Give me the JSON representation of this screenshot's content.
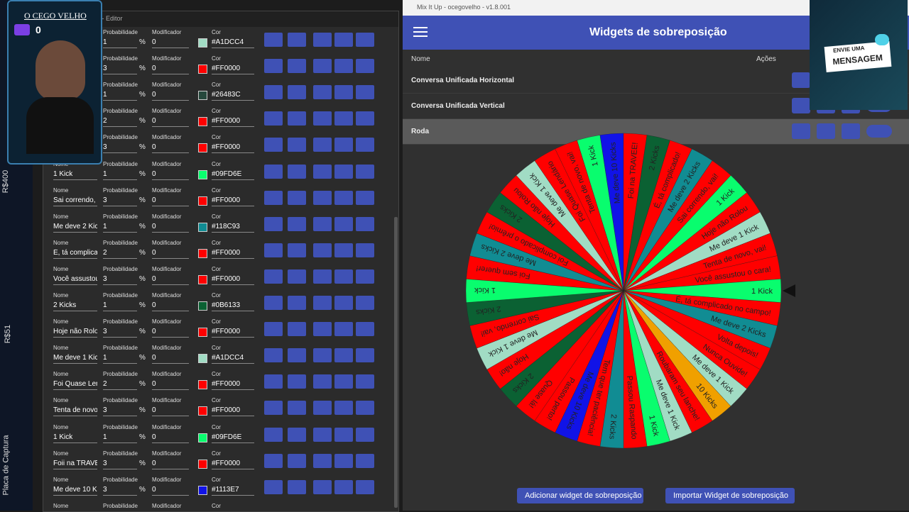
{
  "side_bar": {
    "labels": [
      "R$400",
      "R$51",
      "Placa de Captura"
    ]
  },
  "webcam": {
    "title": "O CEGO VELHO",
    "count": "0"
  },
  "message_box": {
    "line1": "ENVIE UMA",
    "line2": "MENSAGEM"
  },
  "editor": {
    "window_title": "o - Editor",
    "field_labels": {
      "name": "Nome",
      "probability": "Probabilidade",
      "modifier": "Modificador",
      "color": "Cor"
    },
    "percent": "%",
    "rows": [
      {
        "probability": 1,
        "modifier": 0,
        "color": "#A1DCC4"
      },
      {
        "probability": 3,
        "modifier": 0,
        "color": "#FF0000"
      },
      {
        "probability": 1,
        "modifier": 0,
        "color": "#26483C"
      },
      {
        "probability": 2,
        "modifier": 0,
        "color": "#FF0000"
      },
      {
        "probability": 3,
        "modifier": 0,
        "color": "#FF0000"
      },
      {
        "name": "1 Kick",
        "probability": 1,
        "modifier": 0,
        "color": "#09FD6E"
      },
      {
        "name": "Sai correndo,",
        "probability": 3,
        "modifier": 0,
        "color": "#FF0000"
      },
      {
        "name": "Me deve 2 Kic",
        "probability": 1,
        "modifier": 0,
        "color": "#118C93"
      },
      {
        "name": "É, tá complica",
        "probability": 2,
        "modifier": 0,
        "color": "#FF0000"
      },
      {
        "name": "Você assustou",
        "probability": 3,
        "modifier": 0,
        "color": "#FF0000"
      },
      {
        "name": "2 Kicks",
        "probability": 1,
        "modifier": 0,
        "color": "#0B6133"
      },
      {
        "name": "Hoje não Rolo",
        "probability": 3,
        "modifier": 0,
        "color": "#FF0000"
      },
      {
        "name": "Me deve 1 Kic",
        "probability": 1,
        "modifier": 0,
        "color": "#A1DCC4"
      },
      {
        "name": "Foi Quase Ler",
        "probability": 2,
        "modifier": 0,
        "color": "#FF0000"
      },
      {
        "name": "Tenta de novo",
        "probability": 3,
        "modifier": 0,
        "color": "#FF0000"
      },
      {
        "name": "1 Kick",
        "probability": 1,
        "modifier": 0,
        "color": "#09FD6E"
      },
      {
        "name": "Foii na TRAVE",
        "probability": 3,
        "modifier": 0,
        "color": "#FF0000"
      },
      {
        "name": "Me deve 10 K",
        "probability": 3,
        "modifier": 0,
        "color": "#1113E7"
      }
    ]
  },
  "mixitup": {
    "window_title": "Mix It Up - ocegovelho - v1.8.001",
    "header": "Widgets de sobreposição",
    "columns": [
      "Nome",
      "Ações"
    ],
    "widgets": [
      "Conversa Unificada Horizontal",
      "Conversa Unificada Vertical",
      "Roda"
    ],
    "buttons": [
      "Adicionar widget de sobreposição",
      "Importar Widget de sobreposição"
    ],
    "wheel": [
      {
        "label": "1 Kick",
        "color": "#09FD6E"
      },
      {
        "label": "Hoje não Rolou",
        "color": "#FF0000"
      },
      {
        "label": "Me deve 1 Kick",
        "color": "#A1DCC4"
      },
      {
        "label": "Tenta de novo, vai!",
        "color": "#FF0000"
      },
      {
        "label": "Você assustou o cara!",
        "color": "#FF0000"
      },
      {
        "label": "1 Kick",
        "color": "#09FD6E"
      },
      {
        "label": "É, tá complicado no campo!",
        "color": "#FF0000"
      },
      {
        "label": "Me deve 2 Kicks",
        "color": "#118C93"
      },
      {
        "label": "Volta depois!",
        "color": "#FF0000"
      },
      {
        "label": "Nunca Ouvide!",
        "color": "#FF0000"
      },
      {
        "label": "Me deve 1 Kick",
        "color": "#A1DCC4"
      },
      {
        "label": "10 Kicks",
        "color": "#F0A000"
      },
      {
        "label": "Roubaram seu lanche!",
        "color": "#FF0000"
      },
      {
        "label": "Me deve 1 Kick",
        "color": "#A1DCC4"
      },
      {
        "label": "1 Kick",
        "color": "#09FD6E"
      },
      {
        "label": "Passou Raspando",
        "color": "#FF0000"
      },
      {
        "label": "2 Kicks",
        "color": "#118C93"
      },
      {
        "label": "Tem que ter paciência!",
        "color": "#FF0000"
      },
      {
        "label": "Me deve 10 Kicks",
        "color": "#1113E7"
      },
      {
        "label": "Passou perto!",
        "color": "#FF0000"
      },
      {
        "label": "Quase lá!",
        "color": "#FF0000"
      },
      {
        "label": "2 Kicks",
        "color": "#0B6133"
      },
      {
        "label": "Hoje não!",
        "color": "#FF0000"
      },
      {
        "label": "Me deve 1 Kick",
        "color": "#A1DCC4"
      },
      {
        "label": "Sai correndo, vai!",
        "color": "#FF0000"
      },
      {
        "label": "2 Kicks",
        "color": "#0B6133"
      },
      {
        "label": "1 Kick",
        "color": "#09FD6E"
      },
      {
        "label": "Foi sem querer!",
        "color": "#FF0000"
      },
      {
        "label": "Me deve 2 Kicks",
        "color": "#118C93"
      },
      {
        "label": "Foi complicado o prêmio!",
        "color": "#FF0000"
      },
      {
        "label": "2 Kicks",
        "color": "#0B6133"
      },
      {
        "label": "Hoje não Rolou",
        "color": "#FF0000"
      },
      {
        "label": "Me deve 1 Kick",
        "color": "#A1DCC4"
      },
      {
        "label": "Foi Quase Lendário",
        "color": "#FF0000"
      },
      {
        "label": "Tenta de novo, vai!",
        "color": "#FF0000"
      },
      {
        "label": "1 Kick",
        "color": "#09FD6E"
      },
      {
        "label": "Me deve 10 Kicks",
        "color": "#1113E7"
      },
      {
        "label": "Foi na TRAVEE!",
        "color": "#FF0000"
      },
      {
        "label": "2 Kicks",
        "color": "#0B6133"
      },
      {
        "label": "É, tá complicado!",
        "color": "#FF0000"
      },
      {
        "label": "Me deve 2 Kicks",
        "color": "#118C93"
      },
      {
        "label": "Sai correndo, vai!",
        "color": "#FF0000"
      }
    ]
  }
}
